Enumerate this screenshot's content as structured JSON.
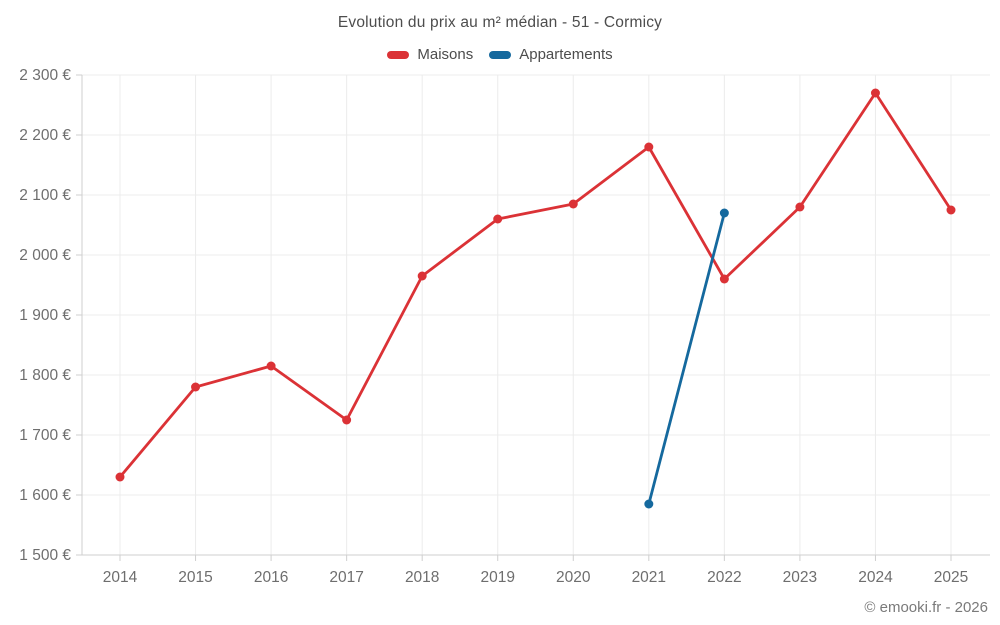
{
  "header": {
    "title": "Evolution du prix au m² médian - 51 - Cormicy"
  },
  "legend": {
    "items": [
      {
        "label": "Maisons",
        "color": "#db3236"
      },
      {
        "label": "Appartements",
        "color": "#15699e"
      }
    ]
  },
  "chart_data": {
    "type": "line",
    "title": "Evolution du prix au m² médian - 51 - Cormicy",
    "x": [
      2014,
      2015,
      2016,
      2017,
      2018,
      2019,
      2020,
      2021,
      2022,
      2023,
      2024,
      2025
    ],
    "series": [
      {
        "name": "Maisons",
        "color": "#db3236",
        "values": [
          1630,
          1780,
          1815,
          1725,
          1965,
          2060,
          2085,
          2180,
          1960,
          2080,
          2270,
          2075
        ]
      },
      {
        "name": "Appartements",
        "color": "#15699e",
        "values": [
          null,
          null,
          null,
          null,
          null,
          null,
          null,
          1585,
          2070,
          null,
          null,
          null
        ]
      }
    ],
    "ylim": [
      1500,
      2300
    ],
    "ytick_step": 100,
    "y_suffix": " €",
    "grid": true,
    "legend_position": "top",
    "colors": {
      "gridline": "#ececec",
      "axis_line": "#cfcfcf",
      "tick_label": "#6e6e6e"
    }
  },
  "footer": {
    "copyright": "© emooki.fr - 2026"
  }
}
